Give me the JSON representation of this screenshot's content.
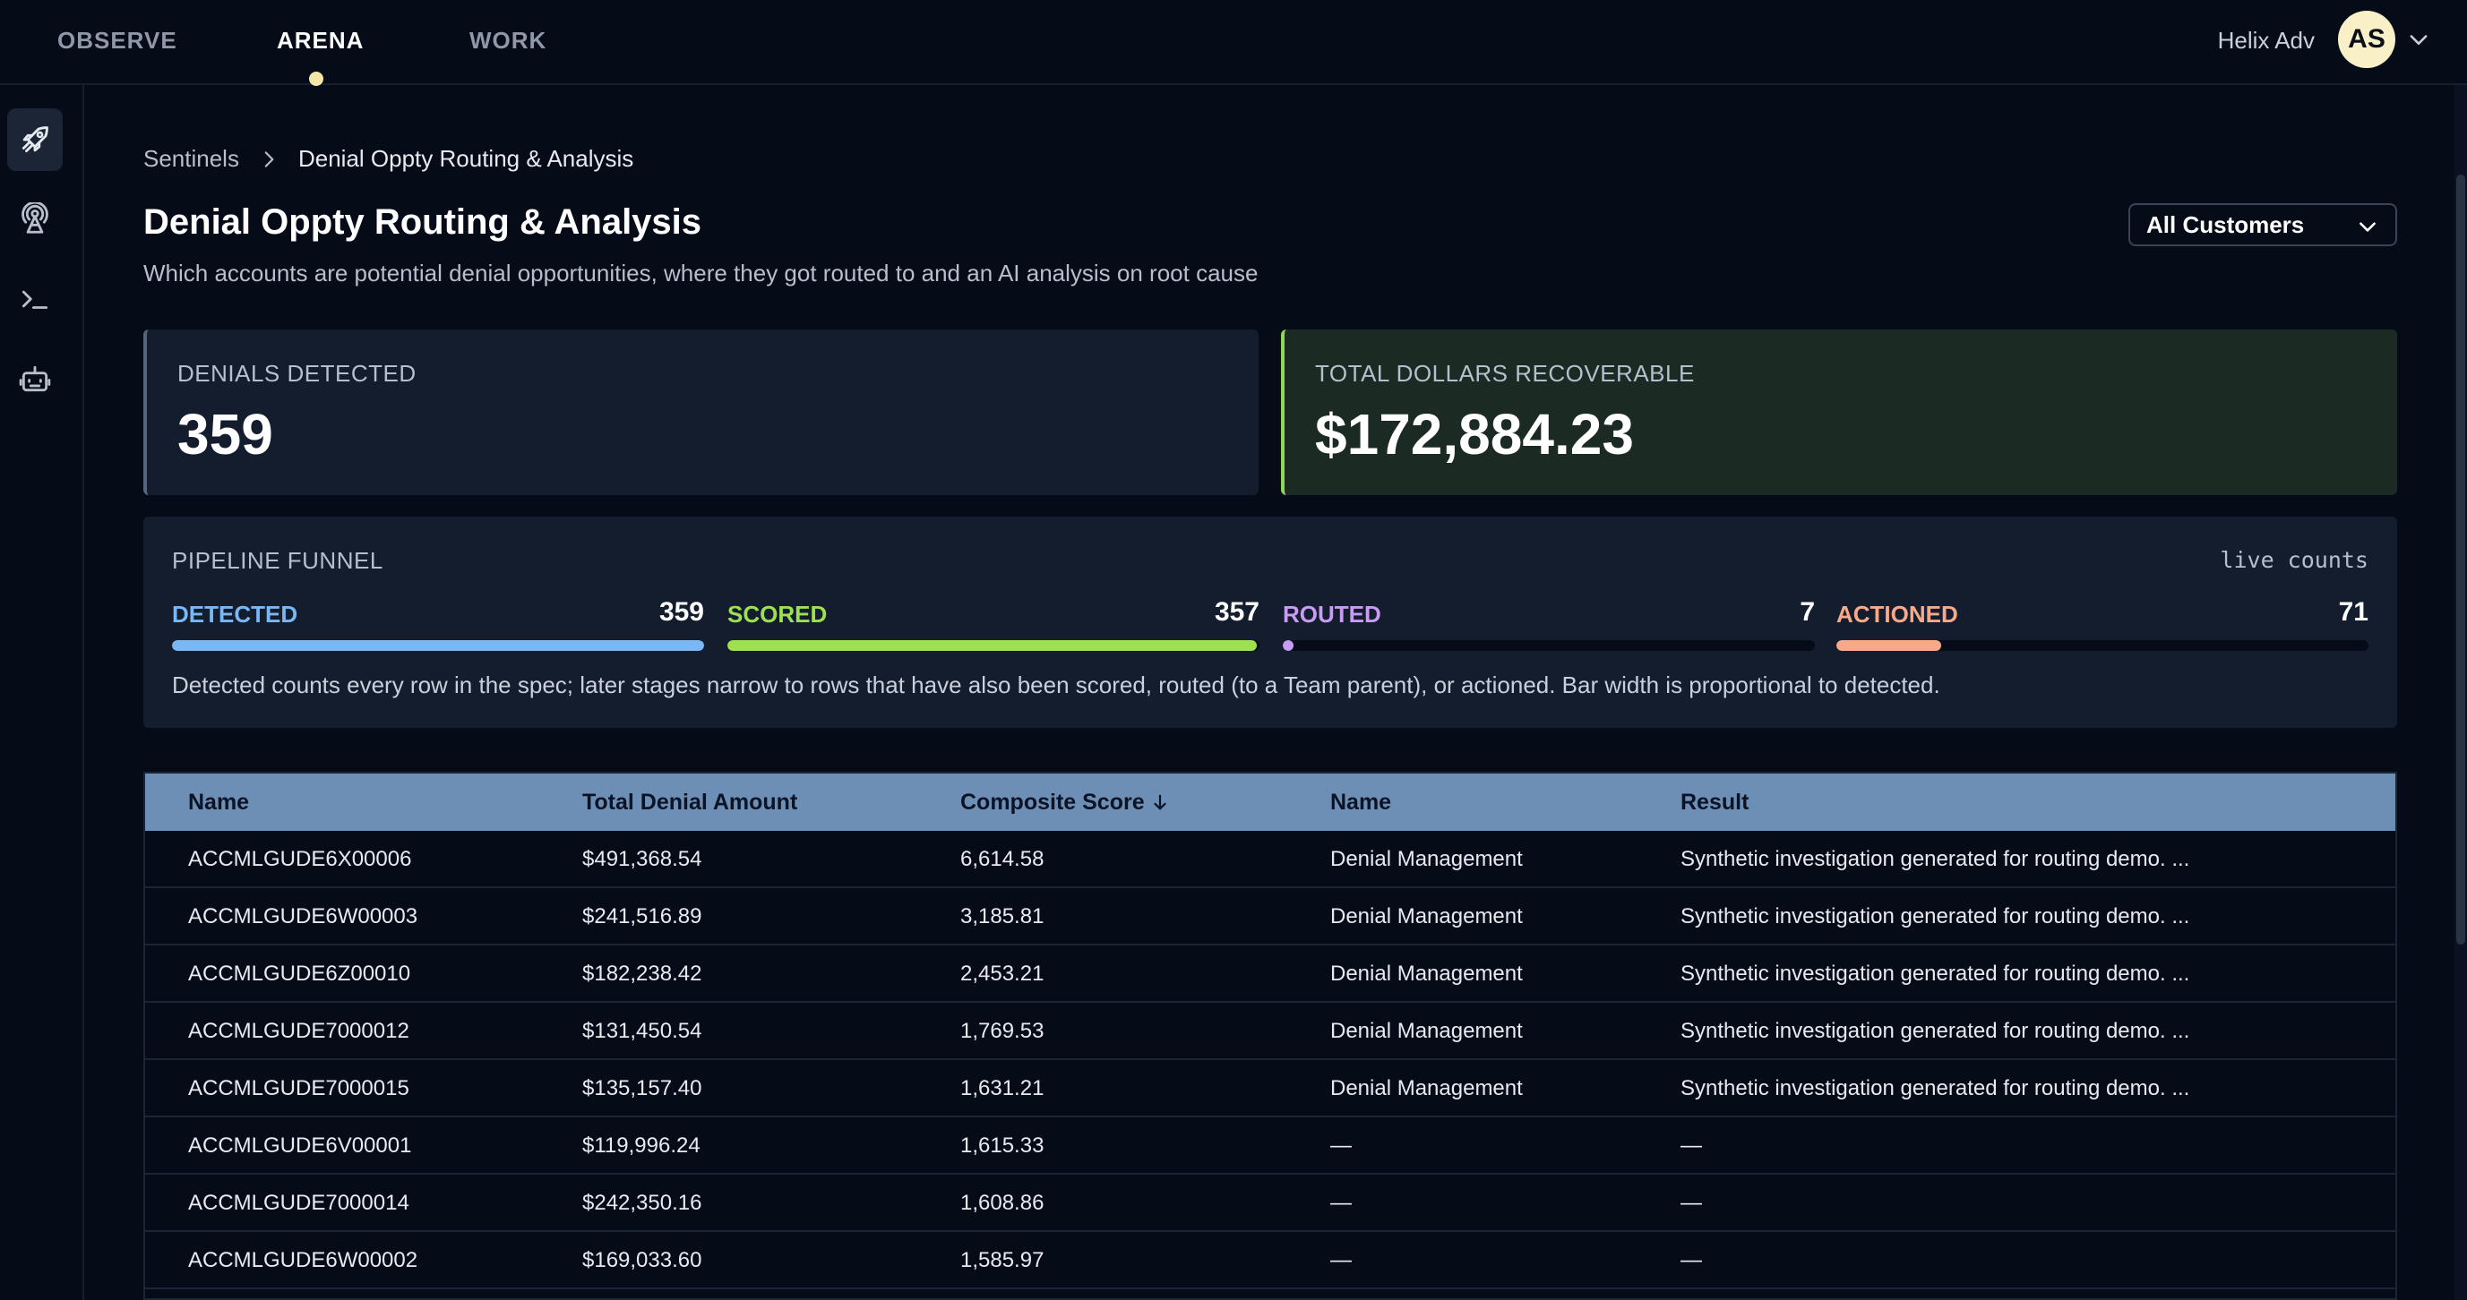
{
  "topnav": {
    "tabs": [
      {
        "label": "OBSERVE"
      },
      {
        "label": "ARENA"
      },
      {
        "label": "WORK"
      }
    ],
    "org_name": "Helix Adv",
    "avatar_initials": "AS"
  },
  "rail": {
    "items": [
      {
        "icon": "rocket-icon",
        "active": true
      },
      {
        "icon": "satellite-icon",
        "active": false
      },
      {
        "icon": "terminal-icon",
        "active": false
      },
      {
        "icon": "robot-icon",
        "active": false
      }
    ]
  },
  "breadcrumb": {
    "root": "Sentinels",
    "current": "Denial Oppty Routing & Analysis"
  },
  "page": {
    "title": "Denial Oppty Routing & Analysis",
    "subtitle": "Which accounts are potential denial opportunities, where they got routed to and an AI analysis on root cause"
  },
  "filter": {
    "selected": "All Customers"
  },
  "stats": {
    "denials_label": "DENIALS DETECTED",
    "denials_value": "359",
    "dollars_label": "TOTAL DOLLARS RECOVERABLE",
    "dollars_value": "$172,884.23"
  },
  "funnel": {
    "title": "PIPELINE FUNNEL",
    "live_label": "live counts",
    "stages": [
      {
        "label": "DETECTED",
        "count": "359",
        "fraction": 1.0,
        "color": "#7ab8f5"
      },
      {
        "label": "SCORED",
        "count": "357",
        "fraction": 0.9944,
        "color": "#9ee04f"
      },
      {
        "label": "ROUTED",
        "count": "7",
        "fraction": 0.0195,
        "color": "#c79cf2"
      },
      {
        "label": "ACTIONED",
        "count": "71",
        "fraction": 0.1978,
        "color": "#f8a98a"
      }
    ],
    "note": "Detected counts every row in the spec; later stages narrow to rows that have also been scored, routed (to a Team parent), or actioned. Bar width is proportional to detected."
  },
  "table": {
    "columns": [
      {
        "label": "Name"
      },
      {
        "label": "Total Denial Amount"
      },
      {
        "label": "Composite Score"
      },
      {
        "label": "Name"
      },
      {
        "label": "Result"
      }
    ],
    "rows": [
      [
        "ACCMLGUDE6X00006",
        "$491,368.54",
        "6,614.58",
        "Denial Management",
        "Synthetic investigation generated for routing demo. ..."
      ],
      [
        "ACCMLGUDE6W00003",
        "$241,516.89",
        "3,185.81",
        "Denial Management",
        "Synthetic investigation generated for routing demo. ..."
      ],
      [
        "ACCMLGUDE6Z00010",
        "$182,238.42",
        "2,453.21",
        "Denial Management",
        "Synthetic investigation generated for routing demo. ..."
      ],
      [
        "ACCMLGUDE7000012",
        "$131,450.54",
        "1,769.53",
        "Denial Management",
        "Synthetic investigation generated for routing demo. ..."
      ],
      [
        "ACCMLGUDE7000015",
        "$135,157.40",
        "1,631.21",
        "Denial Management",
        "Synthetic investigation generated for routing demo. ..."
      ],
      [
        "ACCMLGUDE6V00001",
        "$119,996.24",
        "1,615.33",
        "—",
        "—"
      ],
      [
        "ACCMLGUDE7000014",
        "$242,350.16",
        "1,608.86",
        "—",
        "—"
      ],
      [
        "ACCMLGUDE6W00002",
        "$169,033.60",
        "1,585.97",
        "—",
        "—"
      ]
    ]
  }
}
